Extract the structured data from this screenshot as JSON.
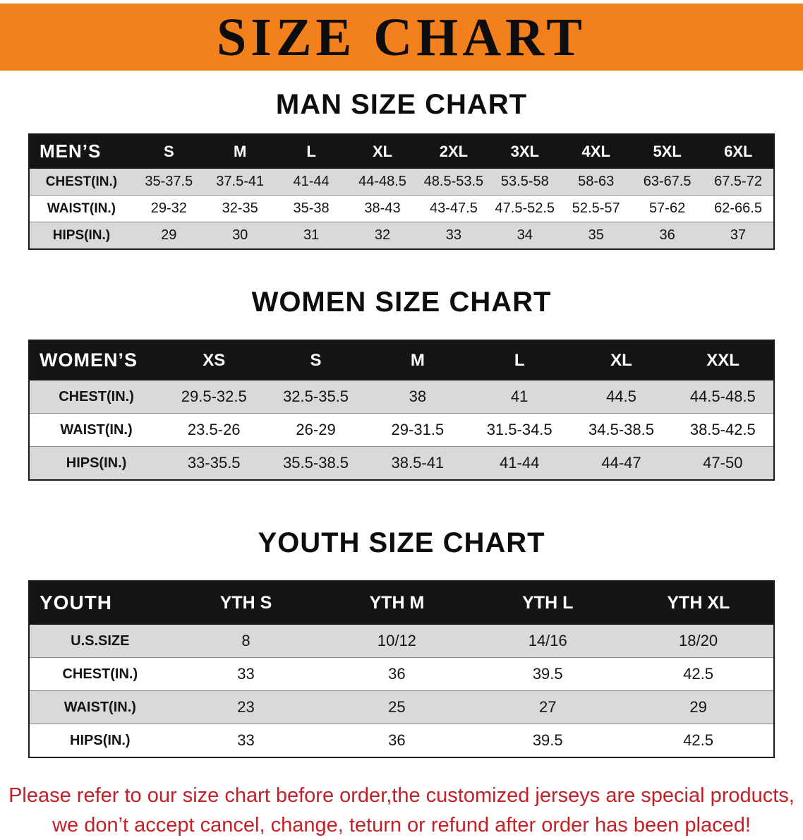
{
  "banner": {
    "title": "SIZE CHART",
    "bg_color": "#f2811d"
  },
  "sections": [
    {
      "title": "MAN SIZE CHART",
      "table": {
        "header": [
          "MEN’S",
          "S",
          "M",
          "L",
          "XL",
          "2XL",
          "3XL",
          "4XL",
          "5XL",
          "6XL"
        ],
        "rows": [
          [
            "CHEST(IN.)",
            "35-37.5",
            "37.5-41",
            "41-44",
            "44-48.5",
            "48.5-53.5",
            "53.5-58",
            "58-63",
            "63-67.5",
            "67.5-72"
          ],
          [
            "WAIST(IN.)",
            "29-32",
            "32-35",
            "35-38",
            "38-43",
            "43-47.5",
            "47.5-52.5",
            "52.5-57",
            "57-62",
            "62-66.5"
          ],
          [
            "HIPS(IN.)",
            "29",
            "30",
            "31",
            "32",
            "33",
            "34",
            "35",
            "36",
            "37"
          ]
        ]
      }
    },
    {
      "title": "WOMEN SIZE CHART",
      "table": {
        "header": [
          "WOMEN’S",
          "XS",
          "S",
          "M",
          "L",
          "XL",
          "XXL"
        ],
        "rows": [
          [
            "CHEST(IN.)",
            "29.5-32.5",
            "32.5-35.5",
            "38",
            "41",
            "44.5",
            "44.5-48.5"
          ],
          [
            "WAIST(IN.)",
            "23.5-26",
            "26-29",
            "29-31.5",
            "31.5-34.5",
            "34.5-38.5",
            "38.5-42.5"
          ],
          [
            "HIPS(IN.)",
            "33-35.5",
            "35.5-38.5",
            "38.5-41",
            "41-44",
            "44-47",
            "47-50"
          ]
        ]
      }
    },
    {
      "title": "YOUTH SIZE CHART",
      "table": {
        "header": [
          "YOUTH",
          "YTH S",
          "YTH M",
          "YTH L",
          "YTH XL"
        ],
        "rows": [
          [
            "U.S.SIZE",
            "8",
            "10/12",
            "14/16",
            "18/20"
          ],
          [
            "CHEST(IN.)",
            "33",
            "36",
            "39.5",
            "42.5"
          ],
          [
            "WAIST(IN.)",
            "23",
            "25",
            "27",
            "29"
          ],
          [
            "HIPS(IN.)",
            "33",
            "36",
            "39.5",
            "42.5"
          ]
        ]
      }
    }
  ],
  "footer": {
    "line1": "Please refer to our size chart before order,the customized jerseys are special products,",
    "line2": "we don’t accept cancel, change, teturn or refund after order has been placed!"
  }
}
